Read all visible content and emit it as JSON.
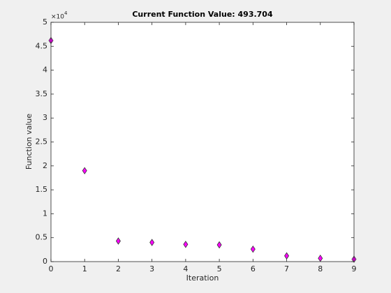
{
  "chart_data": {
    "type": "scatter",
    "title": "Current Function Value: 493.704",
    "xlabel": "Iteration",
    "ylabel": "Function value",
    "y_multiplier_base": "×10",
    "y_multiplier_exponent": "4",
    "x": [
      0,
      1,
      2,
      3,
      4,
      5,
      6,
      7,
      8,
      9
    ],
    "series": [
      {
        "color": "#ff00ff",
        "values": [
          4.62,
          1.9,
          0.43,
          0.4,
          0.36,
          0.35,
          0.26,
          0.12,
          0.07,
          0.05
        ]
      }
    ],
    "xlim": [
      0,
      9
    ],
    "xticks": [
      0,
      1,
      2,
      3,
      4,
      5,
      6,
      7,
      8,
      9
    ],
    "ylim": [
      0,
      5
    ],
    "yticks": [
      0,
      0.5,
      1,
      1.5,
      2,
      2.5,
      3,
      3.5,
      4,
      4.5,
      5
    ]
  }
}
